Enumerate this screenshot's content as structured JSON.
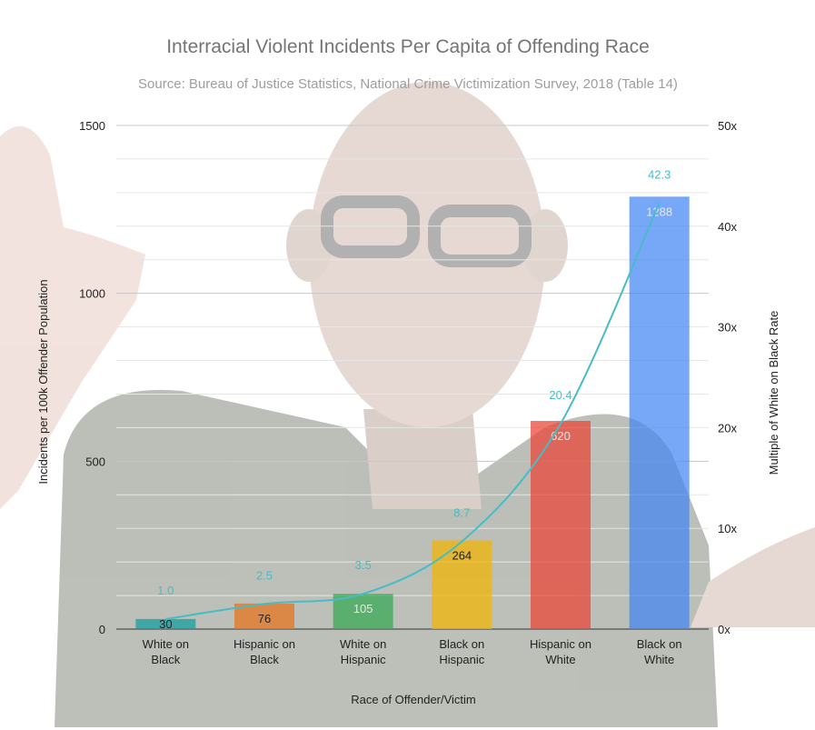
{
  "chart_data": {
    "type": "bar",
    "title": "Interracial Violent Incidents Per Capita of Offending Race",
    "subtitle": "Source: Bureau of Justice Statistics, National Crime Victimization Survey, 2018 (Table 14)",
    "xlabel": "Race of Offender/Victim",
    "ylabel": "Incidents per 100k Offender Population",
    "y2label": "Multiple of White on Black Rate",
    "ylim": [
      0,
      1500
    ],
    "y2lim": [
      0,
      50
    ],
    "yticks": [
      "0",
      "500",
      "1000",
      "1500"
    ],
    "y2ticks": [
      "0x",
      "10x",
      "20x",
      "30x",
      "40x",
      "50x"
    ],
    "grid": true,
    "categories": [
      [
        "White on",
        "Black"
      ],
      [
        "Hispanic on",
        "Black"
      ],
      [
        "White on",
        "Hispanic"
      ],
      [
        "Black on",
        "Hispanic"
      ],
      [
        "Hispanic on",
        "White"
      ],
      [
        "Black on",
        "White"
      ]
    ],
    "values": [
      30,
      76,
      105,
      264,
      620,
      1288
    ],
    "value_labels": [
      "30",
      "76",
      "105",
      "264",
      "620",
      "1288"
    ],
    "bar_colors": [
      "#0f9d9f",
      "#e8711c",
      "#34a853",
      "#f4b400",
      "#ea4335",
      "#4285f4"
    ],
    "line": {
      "values": [
        1.0,
        2.5,
        3.5,
        8.7,
        20.4,
        42.3
      ],
      "labels": [
        "1.0",
        "2.5",
        "3.5",
        "8.7",
        "20.4",
        "42.3"
      ],
      "color": "#46bdc6"
    }
  }
}
